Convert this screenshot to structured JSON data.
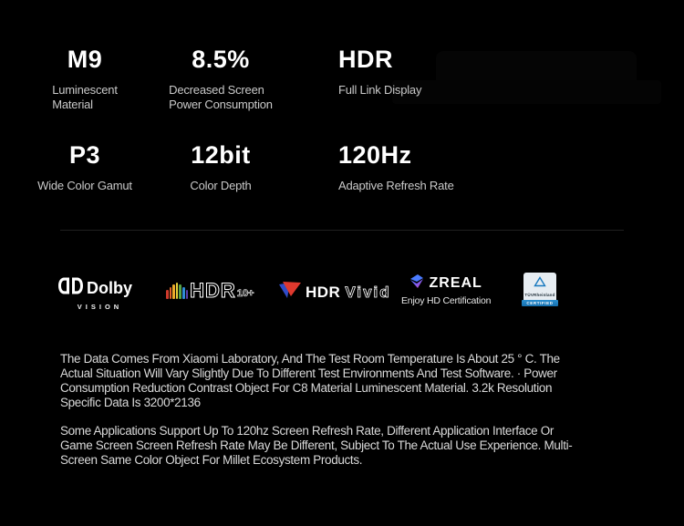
{
  "colors": {
    "background": "#000000",
    "heading_text": "#ffffff",
    "secondary_text": "#c9c9c9",
    "paragraph_text": "#d9d9d9",
    "divider": "#202020",
    "hdr10_bars": [
      "#cf3a2c",
      "#e06228",
      "#ecab2a",
      "#e8d23a",
      "#57a245",
      "#2f8bd6",
      "#5b3fae"
    ],
    "zreal_gradient": [
      "#4a7bff",
      "#7b5cf0",
      "#d44ab8"
    ],
    "vivid_red": "#e0392e",
    "vivid_blue": "#2f4bc7",
    "tuv_blue": "#1879be"
  },
  "specs": [
    {
      "value": "M9",
      "label": "Luminescent\nMaterial"
    },
    {
      "value": "8.5%",
      "label": "Decreased Screen\nPower Consumption"
    },
    {
      "value": "HDR",
      "label": "Full Link Display"
    },
    {
      "value": "P3",
      "label": "Wide Color Gamut"
    },
    {
      "value": "12bit",
      "label": "Color Depth"
    },
    {
      "value": "120Hz",
      "label": "Adaptive Refresh Rate"
    }
  ],
  "logos": {
    "dolby": {
      "wordmark": "Dolby",
      "sub": "VISION"
    },
    "hdr10plus": {
      "wordmark": "HDR",
      "suffix": "10+"
    },
    "hdrvivid": {
      "bold": "HDR",
      "light": "Vivid"
    },
    "zreal": {
      "wordmark": "ZREAL",
      "sub": "Enjoy HD Certification"
    },
    "tuv": {
      "brand": "TÜVRheinland",
      "banner": "CERTIFIED"
    }
  },
  "disclaimer": {
    "p1": "The Data Comes From Xiaomi Laboratory, And The Test Room Temperature Is About 25 ° C. The Actual Situation Will Vary Slightly Due To Different Test Environments And Test Software. · Power Consumption Reduction Contrast Object For C8 Material Luminescent Material. 3.2k Resolution Specific Data Is 3200*2136",
    "p2": "Some Applications Support Up To 120hz Screen Refresh Rate, Different Application Interface Or Game Screen Screen Refresh Rate May Be Different, Subject To The Actual Use Experience. Multi-Screen Same Color Object For Millet Ecosystem Products."
  }
}
